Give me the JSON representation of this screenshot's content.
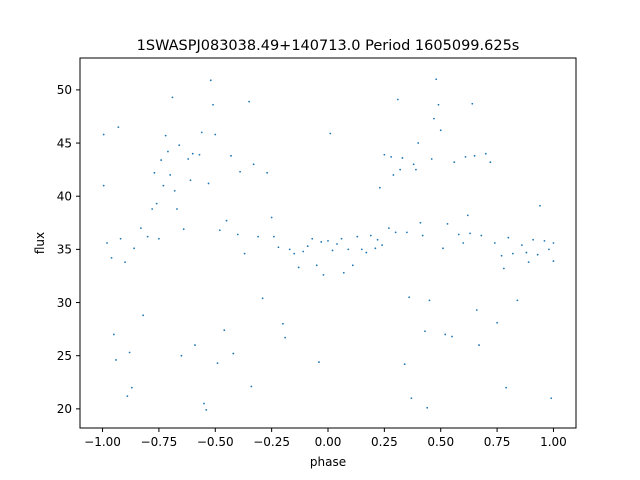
{
  "chart_data": {
    "type": "scatter",
    "title": "1SWASPJ083038.49+140713.0 Period 1605099.625s",
    "xlabel": "phase",
    "ylabel": "flux",
    "xlim": [
      -1.1,
      1.1
    ],
    "ylim": [
      18.2,
      53.0
    ],
    "xticks": [
      -1.0,
      -0.75,
      -0.5,
      -0.25,
      0.0,
      0.25,
      0.5,
      0.75,
      1.0
    ],
    "xtick_labels": [
      "−1.00",
      "−0.75",
      "−0.50",
      "−0.25",
      "0.00",
      "0.25",
      "0.50",
      "0.75",
      "1.00"
    ],
    "yticks": [
      20,
      25,
      30,
      35,
      40,
      45,
      50
    ],
    "ytick_labels": [
      "20",
      "25",
      "30",
      "35",
      "40",
      "45",
      "50"
    ],
    "grid": false,
    "marker_color": "#1f77b4",
    "series": [
      {
        "points": [
          [
            -0.995,
            45.8
          ],
          [
            -0.995,
            41.0
          ],
          [
            -0.98,
            35.6
          ],
          [
            -0.96,
            34.2
          ],
          [
            -0.95,
            27.0
          ],
          [
            -0.94,
            24.6
          ],
          [
            -0.93,
            46.5
          ],
          [
            -0.92,
            36.0
          ],
          [
            -0.9,
            33.8
          ],
          [
            -0.89,
            21.2
          ],
          [
            -0.88,
            25.3
          ],
          [
            -0.87,
            22.0
          ],
          [
            -0.86,
            35.1
          ],
          [
            -0.83,
            37.0
          ],
          [
            -0.82,
            28.8
          ],
          [
            -0.8,
            36.2
          ],
          [
            -0.78,
            38.8
          ],
          [
            -0.77,
            42.2
          ],
          [
            -0.76,
            39.3
          ],
          [
            -0.75,
            36.0
          ],
          [
            -0.74,
            43.4
          ],
          [
            -0.73,
            41.0
          ],
          [
            -0.72,
            45.7
          ],
          [
            -0.71,
            44.2
          ],
          [
            -0.7,
            42.0
          ],
          [
            -0.69,
            49.3
          ],
          [
            -0.68,
            40.5
          ],
          [
            -0.67,
            38.8
          ],
          [
            -0.66,
            44.8
          ],
          [
            -0.65,
            25.0
          ],
          [
            -0.64,
            36.9
          ],
          [
            -0.62,
            43.5
          ],
          [
            -0.61,
            41.5
          ],
          [
            -0.6,
            44.0
          ],
          [
            -0.59,
            26.0
          ],
          [
            -0.57,
            43.9
          ],
          [
            -0.56,
            46.0
          ],
          [
            -0.55,
            20.5
          ],
          [
            -0.54,
            19.9
          ],
          [
            -0.53,
            41.2
          ],
          [
            -0.52,
            50.9
          ],
          [
            -0.51,
            48.6
          ],
          [
            -0.5,
            45.8
          ],
          [
            -0.49,
            24.3
          ],
          [
            -0.48,
            36.8
          ],
          [
            -0.46,
            27.4
          ],
          [
            -0.45,
            37.7
          ],
          [
            -0.43,
            43.8
          ],
          [
            -0.42,
            25.2
          ],
          [
            -0.4,
            36.4
          ],
          [
            -0.39,
            42.3
          ],
          [
            -0.37,
            34.6
          ],
          [
            -0.35,
            48.9
          ],
          [
            -0.34,
            22.1
          ],
          [
            -0.33,
            43.0
          ],
          [
            -0.31,
            36.2
          ],
          [
            -0.29,
            30.4
          ],
          [
            -0.27,
            42.2
          ],
          [
            -0.25,
            38.0
          ],
          [
            -0.24,
            36.2
          ],
          [
            -0.22,
            35.2
          ],
          [
            -0.2,
            28.0
          ],
          [
            -0.19,
            26.7
          ],
          [
            -0.17,
            35.0
          ],
          [
            -0.15,
            34.6
          ],
          [
            -0.13,
            33.3
          ],
          [
            -0.11,
            34.8
          ],
          [
            -0.09,
            35.3
          ],
          [
            -0.07,
            36.0
          ],
          [
            -0.05,
            33.5
          ],
          [
            -0.04,
            24.4
          ],
          [
            -0.03,
            35.7
          ],
          [
            -0.02,
            32.6
          ],
          [
            0.0,
            35.8
          ],
          [
            0.01,
            45.9
          ],
          [
            0.02,
            34.9
          ],
          [
            0.04,
            35.5
          ],
          [
            0.06,
            36.0
          ],
          [
            0.07,
            32.8
          ],
          [
            0.09,
            35.0
          ],
          [
            0.11,
            33.5
          ],
          [
            0.13,
            36.2
          ],
          [
            0.15,
            35.0
          ],
          [
            0.17,
            34.7
          ],
          [
            0.19,
            36.3
          ],
          [
            0.21,
            35.1
          ],
          [
            0.22,
            35.9
          ],
          [
            0.23,
            40.8
          ],
          [
            0.24,
            35.4
          ],
          [
            0.25,
            43.9
          ],
          [
            0.27,
            37.0
          ],
          [
            0.28,
            43.7
          ],
          [
            0.29,
            42.0
          ],
          [
            0.3,
            36.6
          ],
          [
            0.31,
            49.1
          ],
          [
            0.32,
            42.5
          ],
          [
            0.33,
            43.6
          ],
          [
            0.34,
            24.2
          ],
          [
            0.35,
            36.6
          ],
          [
            0.36,
            30.5
          ],
          [
            0.37,
            21.0
          ],
          [
            0.38,
            43.0
          ],
          [
            0.39,
            42.5
          ],
          [
            0.4,
            45.0
          ],
          [
            0.41,
            37.5
          ],
          [
            0.42,
            36.3
          ],
          [
            0.43,
            27.3
          ],
          [
            0.44,
            20.1
          ],
          [
            0.45,
            30.2
          ],
          [
            0.46,
            43.5
          ],
          [
            0.47,
            47.3
          ],
          [
            0.48,
            51.0
          ],
          [
            0.49,
            48.6
          ],
          [
            0.5,
            46.2
          ],
          [
            0.51,
            35.1
          ],
          [
            0.52,
            27.0
          ],
          [
            0.53,
            37.4
          ],
          [
            0.55,
            26.8
          ],
          [
            0.56,
            43.2
          ],
          [
            0.58,
            36.4
          ],
          [
            0.6,
            35.6
          ],
          [
            0.61,
            43.7
          ],
          [
            0.62,
            38.2
          ],
          [
            0.63,
            36.5
          ],
          [
            0.64,
            48.7
          ],
          [
            0.65,
            43.8
          ],
          [
            0.66,
            29.3
          ],
          [
            0.67,
            26.0
          ],
          [
            0.68,
            36.3
          ],
          [
            0.7,
            44.0
          ],
          [
            0.72,
            43.2
          ],
          [
            0.74,
            35.6
          ],
          [
            0.75,
            28.1
          ],
          [
            0.77,
            34.4
          ],
          [
            0.78,
            33.2
          ],
          [
            0.79,
            22.0
          ],
          [
            0.8,
            36.1
          ],
          [
            0.82,
            34.6
          ],
          [
            0.84,
            30.2
          ],
          [
            0.86,
            35.4
          ],
          [
            0.88,
            34.7
          ],
          [
            0.89,
            33.8
          ],
          [
            0.91,
            35.9
          ],
          [
            0.93,
            34.5
          ],
          [
            0.94,
            39.1
          ],
          [
            0.96,
            35.8
          ],
          [
            0.98,
            35.0
          ],
          [
            0.99,
            21.0
          ],
          [
            1.0,
            35.6
          ],
          [
            1.0,
            33.9
          ]
        ]
      }
    ]
  }
}
